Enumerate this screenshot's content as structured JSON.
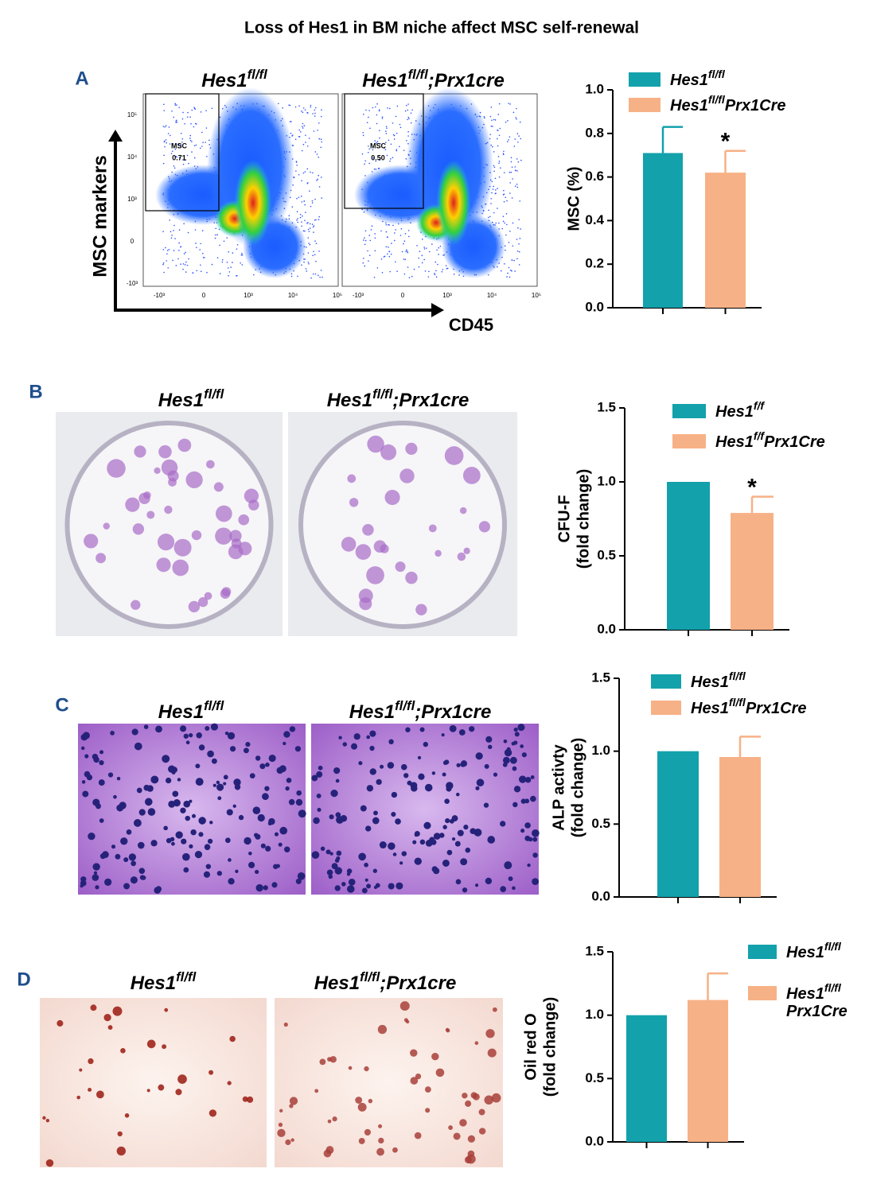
{
  "title": "Loss of Hes1 in BM niche affect MSC self-renewal",
  "panels": [
    {
      "letter": "A",
      "image_labels": [
        "Hes1fl/fl",
        "Hes1fl/fl;Prx1cre"
      ],
      "y_axis_label": "MSC markers",
      "x_axis_label": "CD45",
      "gates": [
        [
          "MSC",
          "0.71"
        ],
        [
          "MSC",
          "0.50"
        ]
      ],
      "xticks": [
        "-10³",
        "0",
        "10³",
        "10⁴",
        "10⁵"
      ],
      "yticks": [
        "10⁵",
        "10⁴",
        "10³",
        "0",
        "-10³"
      ]
    },
    {
      "letter": "B",
      "image_labels": [
        "Hes1fl/fl",
        "Hes1fl/fl;Prx1cre"
      ]
    },
    {
      "letter": "C",
      "image_labels": [
        "Hes1fl/fl",
        "Hes1fl/fl;Prx1cre"
      ]
    },
    {
      "letter": "D",
      "image_labels": [
        "Hes1fl/fl",
        "Hes1fl/fl;Prx1cre"
      ]
    }
  ],
  "chart_data": [
    {
      "type": "bar",
      "ylabel": [
        "MSC  (%)"
      ],
      "ylim": [
        0,
        1
      ],
      "yticks": [
        {
          "value": 0,
          "label": "0.0"
        },
        {
          "value": 0.2,
          "label": "0.2"
        },
        {
          "value": 0.4,
          "label": "0.4"
        },
        {
          "value": 0.6,
          "label": "0.6"
        },
        {
          "value": 0.8,
          "label": "0.8"
        },
        {
          "value": 1,
          "label": "1.0"
        }
      ],
      "series": [
        {
          "name": "Hes1fl/fl",
          "color": "#13a1ab",
          "values": [
            0.71
          ],
          "errors": [
            0.12
          ]
        },
        {
          "name": "Hes1fl/flPrx1Cre",
          "color": "#f7b186",
          "values": [
            0.62
          ],
          "errors": [
            0.1
          ],
          "annotation": "*"
        }
      ]
    },
    {
      "type": "bar",
      "ylabel": [
        "CFU-F",
        "(fold change)"
      ],
      "ylim": [
        0,
        1.5
      ],
      "yticks": [
        {
          "value": 0,
          "label": "0.0"
        },
        {
          "value": 0.5,
          "label": "0.5"
        },
        {
          "value": 1,
          "label": "1.0"
        },
        {
          "value": 1.5,
          "label": "1.5"
        }
      ],
      "series": [
        {
          "name": "Hes1f/f",
          "color": "#13a1ab",
          "values": [
            1.0
          ]
        },
        {
          "name": "Hes1f/fPrx1Cre",
          "color": "#f7b186",
          "values": [
            0.79
          ],
          "errors": [
            0.11
          ],
          "annotation": "*"
        }
      ]
    },
    {
      "type": "bar",
      "ylabel": [
        "ALP activty",
        "(fold change)"
      ],
      "ylim": [
        0,
        1.5
      ],
      "yticks": [
        {
          "value": 0,
          "label": "0.0"
        },
        {
          "value": 0.5,
          "label": "0.5"
        },
        {
          "value": 1,
          "label": "1.0"
        },
        {
          "value": 1.5,
          "label": "1.5"
        }
      ],
      "series": [
        {
          "name": "Hes1fl/fl",
          "color": "#13a1ab",
          "values": [
            1.0
          ]
        },
        {
          "name": "Hes1fl/flPrx1Cre",
          "color": "#f7b186",
          "values": [
            0.96
          ],
          "errors": [
            0.14
          ]
        }
      ]
    },
    {
      "type": "bar",
      "ylabel": [
        "Oil red O",
        "(fold change)"
      ],
      "ylim": [
        0,
        1.5
      ],
      "yticks": [
        {
          "value": 0,
          "label": "0.0"
        },
        {
          "value": 0.5,
          "label": "0.5"
        },
        {
          "value": 1,
          "label": "1.0"
        },
        {
          "value": 1.5,
          "label": "1.5"
        }
      ],
      "series": [
        {
          "name": "Hes1fl/fl",
          "color": "#13a1ab",
          "values": [
            1.0
          ]
        },
        {
          "name": "Hes1fl/flPrx1Cre",
          "color": "#f7b186",
          "values": [
            1.12
          ],
          "errors": [
            0.21
          ]
        }
      ]
    }
  ]
}
